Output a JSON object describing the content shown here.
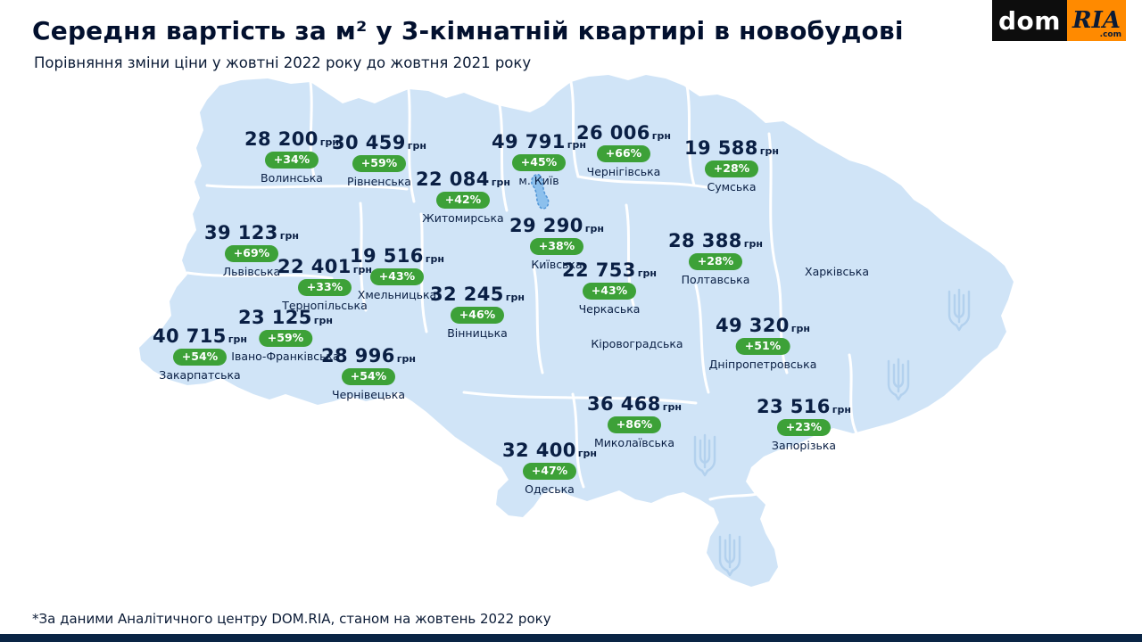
{
  "header": {
    "title": "Середня вартість за м² у 3-кімнатній квартирі в новобудові",
    "subtitle": "Порівняння зміни ціни у жовтні 2022 року до жовтня 2021 року"
  },
  "logo": {
    "dom": "dom",
    "ria": "RIA",
    "com": ".com"
  },
  "footnote": "*За даними Аналітичного центру DOM.RIA, станом на жовтень 2022 року",
  "currency_suffix": "грн",
  "colors": {
    "accent_green": "#3da138",
    "map_fill": "#d0e4f7",
    "navy": "#0a1f44",
    "logo_black": "#0d0d0d",
    "logo_orange": "#ff8a00",
    "bottom_bar": "#0a2545",
    "trident_outline": "#b3d1ee",
    "reservoir_fill": "#8cc0ed",
    "reservoir_stroke": "#4f94d6"
  },
  "regions": [
    {
      "name": "Волинська",
      "price": "28 200",
      "change": "+34%"
    },
    {
      "name": "Рівненська",
      "price": "30 459",
      "change": "+59%"
    },
    {
      "name": "м. Київ",
      "price": "49 791",
      "change": "+45%"
    },
    {
      "name": "Чернігівська",
      "price": "26 006",
      "change": "+66%"
    },
    {
      "name": "Сумська",
      "price": "19 588",
      "change": "+28%"
    },
    {
      "name": "Житомирська",
      "price": "22 084",
      "change": "+42%"
    },
    {
      "name": "Київська",
      "price": "29 290",
      "change": "+38%"
    },
    {
      "name": "Полтавська",
      "price": "28 388",
      "change": "+28%"
    },
    {
      "name": "Харківська",
      "price": "",
      "change": ""
    },
    {
      "name": "Львівська",
      "price": "39 123",
      "change": "+69%"
    },
    {
      "name": "Тернопільська",
      "price": "22 401",
      "change": "+33%"
    },
    {
      "name": "Хмельницька",
      "price": "19 516",
      "change": "+43%"
    },
    {
      "name": "Черкаська",
      "price": "22 753",
      "change": "+43%"
    },
    {
      "name": "Вінницька",
      "price": "32 245",
      "change": "+46%"
    },
    {
      "name": "Кіровоградська",
      "price": "",
      "change": ""
    },
    {
      "name": "Дніпропетровська",
      "price": "49 320",
      "change": "+51%"
    },
    {
      "name": "Івано-Франківська",
      "price": "23 125",
      "change": "+59%"
    },
    {
      "name": "Закарпатська",
      "price": "40 715",
      "change": "+54%"
    },
    {
      "name": "Чернівецька",
      "price": "28 996",
      "change": "+54%"
    },
    {
      "name": "Миколаївська",
      "price": "36 468",
      "change": "+86%"
    },
    {
      "name": "Запорізька",
      "price": "23 516",
      "change": "+23%"
    },
    {
      "name": "Одеська",
      "price": "32 400",
      "change": "+47%"
    }
  ]
}
